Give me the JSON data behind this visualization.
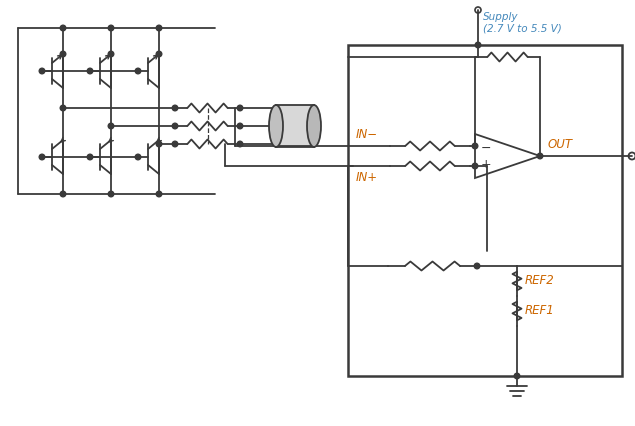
{
  "bg_color": "#ffffff",
  "line_color": "#3a3a3a",
  "label_color": "#cc6600",
  "supply_label_color": "#4488bb",
  "fig_width": 6.35,
  "fig_height": 4.26,
  "supply_text": "Supply\n(2.7 V to 5.5 V)",
  "in_minus_label": "IN−",
  "in_plus_label": "IN+",
  "out_label": "OUT",
  "ref2_label": "REF2",
  "ref1_label": "REF1"
}
